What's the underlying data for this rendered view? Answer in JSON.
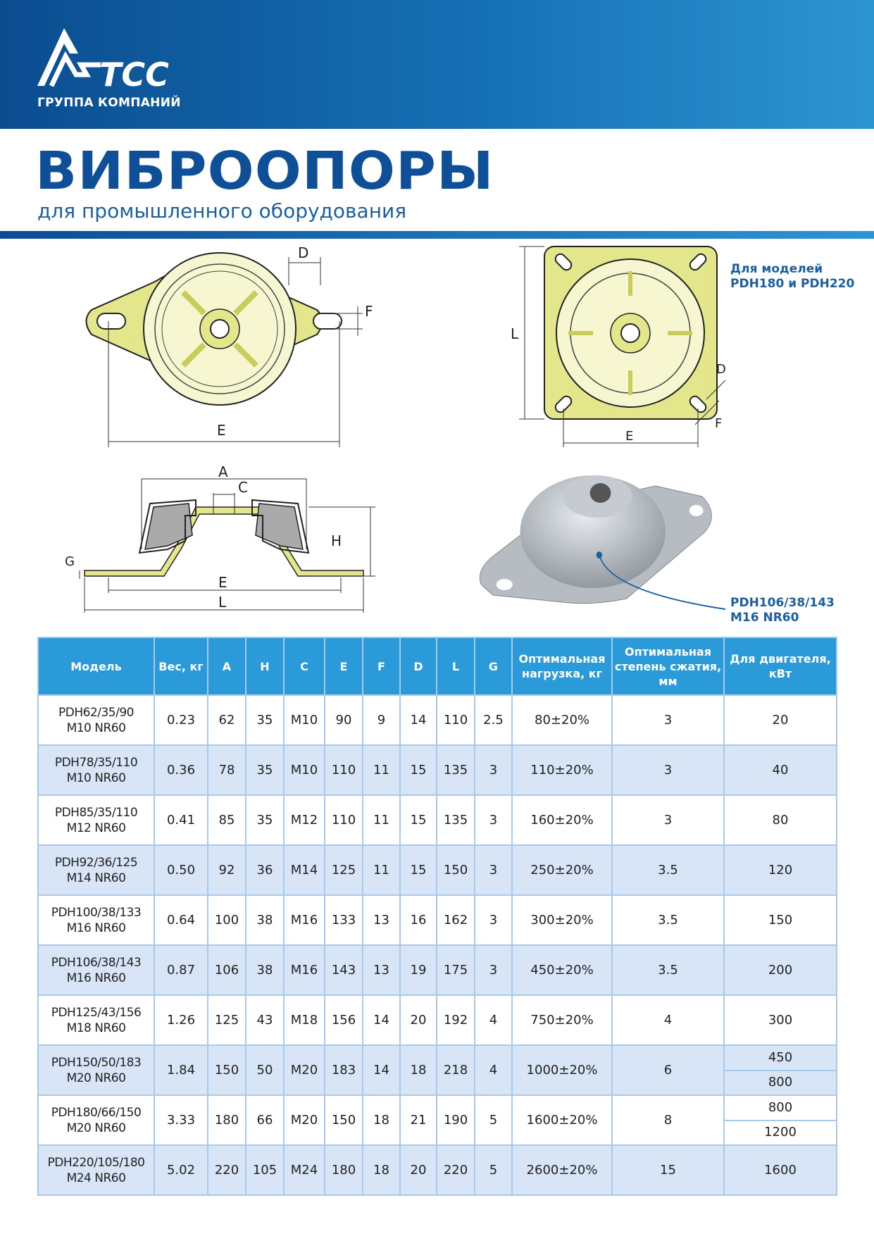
{
  "header": {
    "logo_text": "ТСС",
    "logo_subtitle": "ГРУППА КОМПАНИЙ"
  },
  "title": "ВИБРООПОРЫ",
  "subtitle": "для промышленного оборудования",
  "colors": {
    "brand_dark": "#0b4d90",
    "brand_light": "#2d95d2",
    "header_row": "#2b9ad8",
    "alt_row": "#d7e5f6",
    "rubber": "#e3e68a"
  },
  "drawings": {
    "top_view_labels": {
      "d": "D",
      "f": "F",
      "e": "E"
    },
    "square_view_labels": {
      "l": "L",
      "e": "E",
      "d": "D",
      "f": "F"
    },
    "square_note": [
      "Для моделей",
      "PDH180 и PDH220"
    ],
    "section_labels": {
      "a": "A",
      "c": "C",
      "h": "H",
      "g": "G",
      "e": "E",
      "l": "L"
    },
    "photo_note": [
      "PDH106/38/143",
      "M16 NR60"
    ]
  },
  "table": {
    "headers": [
      "Модель",
      "Вес, кг",
      "A",
      "H",
      "C",
      "E",
      "F",
      "D",
      "L",
      "G",
      "Оптимальная нагрузка, кг",
      "Оптимальная степень сжатия, мм",
      "Для двигателя, кВт"
    ],
    "rows": [
      {
        "model": [
          "PDH62/35/90",
          "M10 NR60"
        ],
        "cells": [
          "0.23",
          "62",
          "35",
          "M10",
          "90",
          "9",
          "14",
          "110",
          "2.5",
          "80±20%",
          "3"
        ],
        "power": [
          "20"
        ]
      },
      {
        "model": [
          "PDH78/35/110",
          "M10 NR60"
        ],
        "cells": [
          "0.36",
          "78",
          "35",
          "M10",
          "110",
          "11",
          "15",
          "135",
          "3",
          "110±20%",
          "3"
        ],
        "power": [
          "40"
        ]
      },
      {
        "model": [
          "PDH85/35/110",
          "M12 NR60"
        ],
        "cells": [
          "0.41",
          "85",
          "35",
          "M12",
          "110",
          "11",
          "15",
          "135",
          "3",
          "160±20%",
          "3"
        ],
        "power": [
          "80"
        ]
      },
      {
        "model": [
          "PDH92/36/125",
          "M14 NR60"
        ],
        "cells": [
          "0.50",
          "92",
          "36",
          "M14",
          "125",
          "11",
          "15",
          "150",
          "3",
          "250±20%",
          "3.5"
        ],
        "power": [
          "120"
        ]
      },
      {
        "model": [
          "PDH100/38/133",
          "M16 NR60"
        ],
        "cells": [
          "0.64",
          "100",
          "38",
          "M16",
          "133",
          "13",
          "16",
          "162",
          "3",
          "300±20%",
          "3.5"
        ],
        "power": [
          "150"
        ]
      },
      {
        "model": [
          "PDH106/38/143",
          "M16 NR60"
        ],
        "cells": [
          "0.87",
          "106",
          "38",
          "M16",
          "143",
          "13",
          "19",
          "175",
          "3",
          "450±20%",
          "3.5"
        ],
        "power": [
          "200"
        ]
      },
      {
        "model": [
          "PDH125/43/156",
          "M18 NR60"
        ],
        "cells": [
          "1.26",
          "125",
          "43",
          "M18",
          "156",
          "14",
          "20",
          "192",
          "4",
          "750±20%",
          "4"
        ],
        "power": [
          "300"
        ]
      },
      {
        "model": [
          "PDH150/50/183",
          "M20 NR60"
        ],
        "cells": [
          "1.84",
          "150",
          "50",
          "M20",
          "183",
          "14",
          "18",
          "218",
          "4",
          "1000±20%",
          "6"
        ],
        "power": [
          "450",
          "800"
        ]
      },
      {
        "model": [
          "PDH180/66/150",
          "M20 NR60"
        ],
        "cells": [
          "3.33",
          "180",
          "66",
          "M20",
          "150",
          "18",
          "21",
          "190",
          "5",
          "1600±20%",
          "8"
        ],
        "power": [
          "800",
          "1200"
        ]
      },
      {
        "model": [
          "PDH220/105/180",
          "M24 NR60"
        ],
        "cells": [
          "5.02",
          "220",
          "105",
          "M24",
          "180",
          "18",
          "20",
          "220",
          "5",
          "2600±20%",
          "15"
        ],
        "power": [
          "1600"
        ]
      }
    ]
  }
}
